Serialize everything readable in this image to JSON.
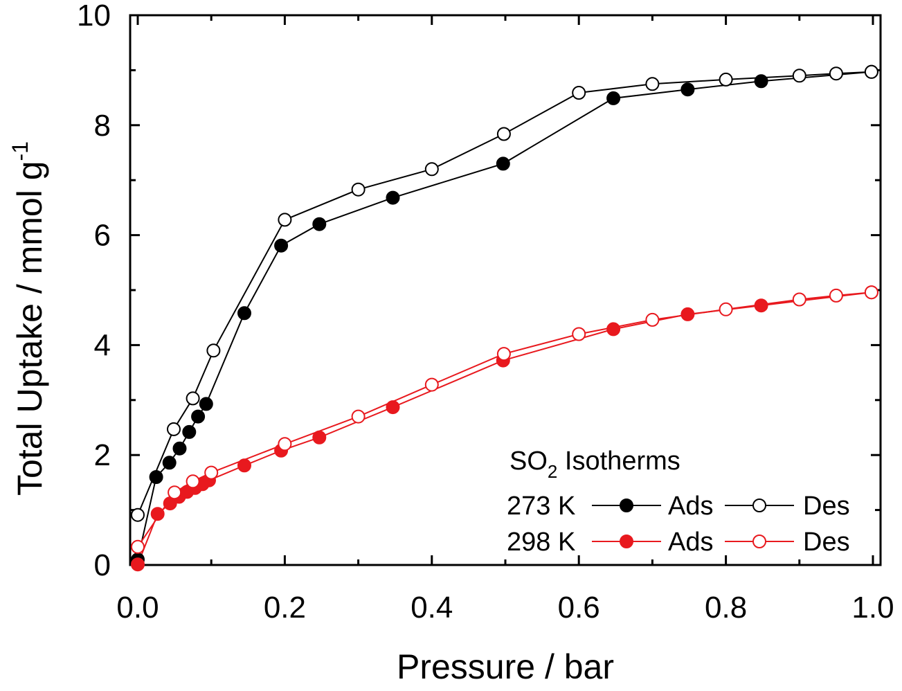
{
  "chart_data": {
    "type": "line",
    "xlabel": "Pressure / bar",
    "ylabel_main": "Total Uptake / mmol g",
    "ylabel_sup": "-1",
    "xlim": [
      0,
      1
    ],
    "ylim": [
      0,
      10
    ],
    "xticks": [
      "0.0",
      "0.2",
      "0.4",
      "0.6",
      "0.8",
      "1.0"
    ],
    "yticks": [
      "0",
      "2",
      "4",
      "6",
      "8",
      "10"
    ],
    "legend": {
      "placement": "bottom-right",
      "title_main": "SO",
      "title_sub": "2",
      "title_rest": " Isotherms",
      "row1_label": "273 K",
      "row2_label": "298 K",
      "ads_label": "Ads",
      "des_label": "Des"
    },
    "colors": {
      "273K": "#000000",
      "298K": "#e8191e"
    },
    "series": [
      {
        "key": "273K-ads",
        "color": "#000000",
        "marker": "filled",
        "points": [
          [
            0,
            0.1
          ],
          [
            0.025,
            1.6
          ],
          [
            0.043,
            1.86
          ],
          [
            0.057,
            2.12
          ],
          [
            0.07,
            2.42
          ],
          [
            0.082,
            2.7
          ],
          [
            0.093,
            2.93
          ],
          [
            0.145,
            4.58
          ],
          [
            0.195,
            5.81
          ],
          [
            0.247,
            6.2
          ],
          [
            0.347,
            6.68
          ],
          [
            0.497,
            7.3
          ],
          [
            0.647,
            8.49
          ],
          [
            0.748,
            8.65
          ],
          [
            0.848,
            8.8
          ],
          [
            0.998,
            8.97
          ]
        ]
      },
      {
        "key": "273K-des",
        "color": "#000000",
        "marker": "open",
        "points": [
          [
            0.998,
            8.97
          ],
          [
            0.95,
            8.94
          ],
          [
            0.9,
            8.9
          ],
          [
            0.8,
            8.83
          ],
          [
            0.7,
            8.75
          ],
          [
            0.6,
            8.59
          ],
          [
            0.498,
            7.84
          ],
          [
            0.4,
            7.2
          ],
          [
            0.3,
            6.83
          ],
          [
            0.2,
            6.28
          ],
          [
            0.103,
            3.9
          ],
          [
            0.075,
            3.03
          ],
          [
            0.049,
            2.47
          ],
          [
            0,
            0.91
          ]
        ]
      },
      {
        "key": "298K-ads",
        "color": "#e8191e",
        "marker": "filled",
        "points": [
          [
            0,
            0.01
          ],
          [
            0.027,
            0.93
          ],
          [
            0.044,
            1.12
          ],
          [
            0.056,
            1.24
          ],
          [
            0.067,
            1.33
          ],
          [
            0.078,
            1.4
          ],
          [
            0.088,
            1.47
          ],
          [
            0.097,
            1.54
          ],
          [
            0.145,
            1.81
          ],
          [
            0.195,
            2.08
          ],
          [
            0.247,
            2.32
          ],
          [
            0.347,
            2.87
          ],
          [
            0.497,
            3.72
          ],
          [
            0.647,
            4.29
          ],
          [
            0.748,
            4.56
          ],
          [
            0.848,
            4.72
          ],
          [
            0.998,
            4.96
          ]
        ]
      },
      {
        "key": "298K-des",
        "color": "#e8191e",
        "marker": "open",
        "points": [
          [
            0.998,
            4.96
          ],
          [
            0.95,
            4.9
          ],
          [
            0.9,
            4.83
          ],
          [
            0.8,
            4.65
          ],
          [
            0.7,
            4.46
          ],
          [
            0.6,
            4.2
          ],
          [
            0.498,
            3.84
          ],
          [
            0.4,
            3.28
          ],
          [
            0.3,
            2.7
          ],
          [
            0.2,
            2.2
          ],
          [
            0.1,
            1.68
          ],
          [
            0.075,
            1.52
          ],
          [
            0.05,
            1.32
          ],
          [
            0,
            0.33
          ]
        ]
      }
    ]
  }
}
